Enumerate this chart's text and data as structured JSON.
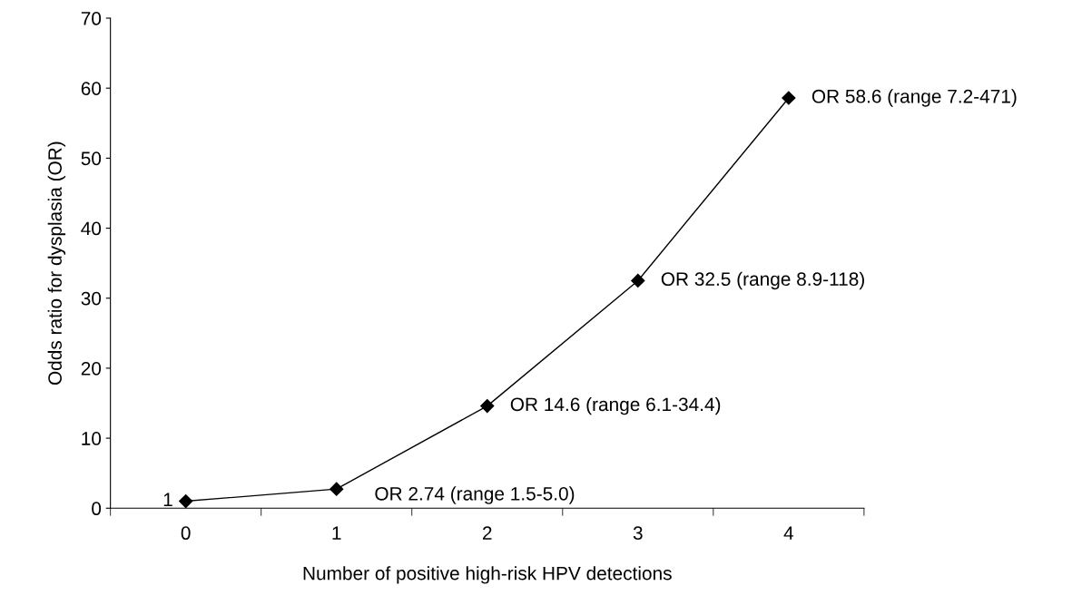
{
  "chart_data": {
    "type": "line",
    "xlabel": "Number of positive high-risk HPV detections",
    "ylabel": "Odds ratio for dysplasia (OR)",
    "categories": [
      "0",
      "1",
      "2",
      "3",
      "4"
    ],
    "series": [
      {
        "color": "#000000",
        "values": [
          1,
          2.74,
          14.6,
          32.5,
          58.6
        ]
      }
    ],
    "ylim": [
      0,
      70
    ],
    "yticks": [
      0,
      10,
      20,
      30,
      40,
      50,
      60,
      70
    ],
    "marker": "diamond",
    "line_style": "solid",
    "grid": false,
    "legend": false,
    "annotations": [
      {
        "text": "1",
        "x": "0",
        "y": 1
      },
      {
        "text": "OR 2.74 (range 1.5-5.0)",
        "x": "1",
        "y": 2.74
      },
      {
        "text": "OR 14.6 (range 6.1-34.4)",
        "x": "2",
        "y": 14.6
      },
      {
        "text": "OR 32.5 (range 8.9-118)",
        "x": "3",
        "y": 32.5
      },
      {
        "text": "OR 58.6 (range 7.2-471)",
        "x": "4",
        "y": 58.6
      }
    ]
  }
}
